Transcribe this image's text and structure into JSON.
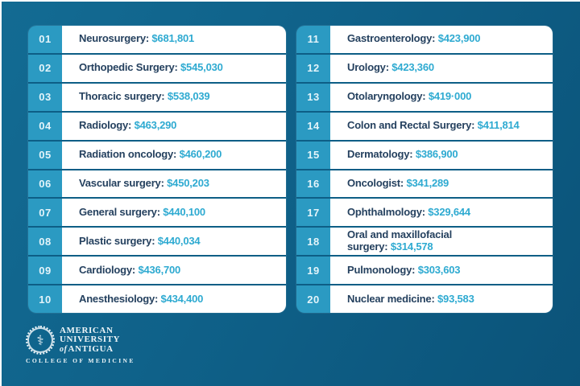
{
  "colors": {
    "background": "#0f6189",
    "card_separator": "#0d5e86",
    "rank_badge": "#2b9ac2",
    "specialty_label": "#25415f",
    "salary_value": "#2eaad1",
    "card_background": "#ffffff",
    "logo_text": "#edf5f8"
  },
  "chart_data": {
    "type": "table",
    "title": "",
    "categories": [
      "Neurosurgery",
      "Orthopedic Surgery",
      "Thoracic surgery",
      "Radiology",
      "Radiation oncology",
      "Vascular surgery",
      "General surgery",
      "Plastic surgery",
      "Cardiology",
      "Anesthesiology",
      "Gastroenterology",
      "Urology",
      "Otolaryngology",
      "Colon and Rectal Surgery",
      "Dermatology",
      "Oncologist",
      "Ophthalmology",
      "Oral and maxillofacial surgery",
      "Pulmonology",
      "Nuclear medicine"
    ],
    "values": [
      681801,
      545030,
      538039,
      463290,
      460200,
      450203,
      440100,
      440034,
      436700,
      434400,
      423900,
      423360,
      419000,
      411814,
      386900,
      341289,
      329644,
      314578,
      303603,
      93583
    ],
    "ranks": [
      "01",
      "02",
      "03",
      "04",
      "05",
      "06",
      "07",
      "08",
      "09",
      "10",
      "11",
      "12",
      "13",
      "14",
      "15",
      "16",
      "17",
      "18",
      "19",
      "20"
    ],
    "value_format": "USD"
  },
  "list": {
    "left": [
      {
        "rank": "01",
        "label": "Neurosurgery:",
        "value": "$681,801"
      },
      {
        "rank": "02",
        "label": "Orthopedic Surgery:",
        "value": "$545,030"
      },
      {
        "rank": "03",
        "label": "Thoracic surgery:",
        "value": "$538,039"
      },
      {
        "rank": "04",
        "label": "Radiology:",
        "value": "$463,290"
      },
      {
        "rank": "05",
        "label": "Radiation oncology:",
        "value": "$460,200"
      },
      {
        "rank": "06",
        "label": "Vascular surgery:",
        "value": "$450,203"
      },
      {
        "rank": "07",
        "label": "General surgery:",
        "value": "$440,100"
      },
      {
        "rank": "08",
        "label": "Plastic surgery:",
        "value": "$440,034"
      },
      {
        "rank": "09",
        "label": "Cardiology:",
        "value": "$436,700"
      },
      {
        "rank": "10",
        "label": "Anesthesiology:",
        "value": "$434,400"
      }
    ],
    "right": [
      {
        "rank": "11",
        "label": "Gastroenterology:",
        "value": "$423,900"
      },
      {
        "rank": "12",
        "label": "Urology:",
        "value": "$423,360"
      },
      {
        "rank": "13",
        "label": "Otolaryngology:",
        "value": "$419·000"
      },
      {
        "rank": "14",
        "label": "Colon and Rectal Surgery:",
        "value": "$411,814"
      },
      {
        "rank": "15",
        "label": "Dermatology:",
        "value": "$386,900"
      },
      {
        "rank": "16",
        "label": "Oncologist:",
        "value": "$341,289"
      },
      {
        "rank": "17",
        "label": "Ophthalmology:",
        "value": "$329,644"
      },
      {
        "rank": "18",
        "label": "Oral and maxillofacial",
        "label2": "surgery:",
        "value": "$314,578"
      },
      {
        "rank": "19",
        "label": "Pulmonology:",
        "value": "$303,603"
      },
      {
        "rank": "20",
        "label": "Nuclear medicine:",
        "value": "$93,583"
      }
    ]
  },
  "logo": {
    "seal_glyph": "⚕",
    "line1": "AMERICAN",
    "line2": "UNIVERSITY",
    "line3_of": "of",
    "line3_rest": "ANTIGUA",
    "college_line": "COLLEGE OF MEDICINE"
  }
}
